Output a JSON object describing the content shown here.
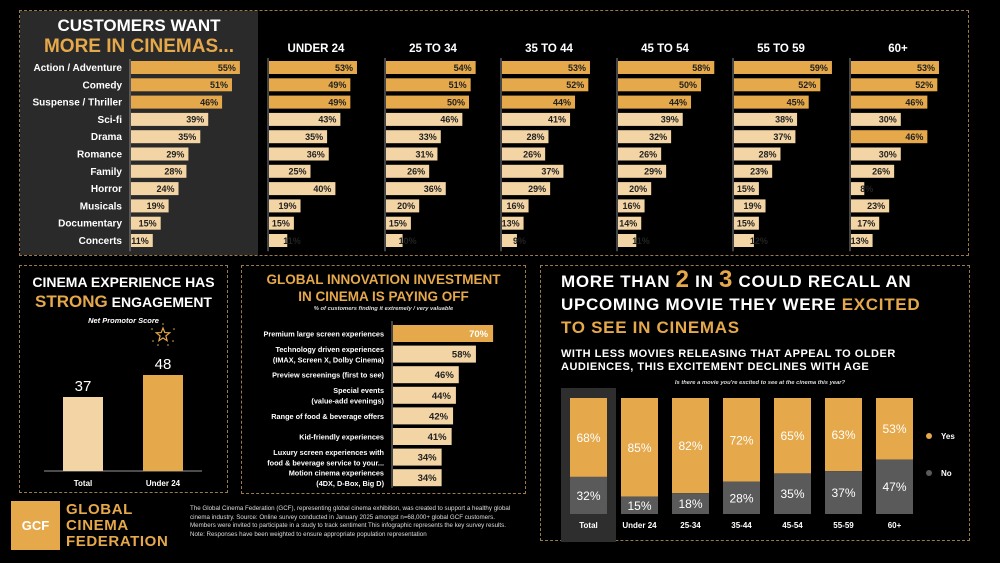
{
  "colors": {
    "gold": "#e5a84a",
    "light": "#f3d4a4",
    "gray": "#5a5a5a",
    "panel_bg": "#2a2a2a",
    "border": "#9a7a4a"
  },
  "genres": {
    "title_line1": "CUSTOMERS WANT",
    "title_line2": "MORE IN CINEMAS...",
    "categories": [
      "Action / Adventure",
      "Comedy",
      "Suspense / Thriller",
      "Sci-fi",
      "Drama",
      "Romance",
      "Family",
      "Horror",
      "Musicals",
      "Documentary",
      "Concerts"
    ]
  },
  "chart_data": [
    {
      "type": "bar",
      "title": "CUSTOMERS WANT MORE IN CINEMAS... (Total)",
      "orientation": "horizontal",
      "categories": [
        "Action / Adventure",
        "Comedy",
        "Suspense / Thriller",
        "Sci-fi",
        "Drama",
        "Romance",
        "Family",
        "Horror",
        "Musicals",
        "Documentary",
        "Concerts"
      ],
      "values": [
        55,
        51,
        46,
        39,
        35,
        29,
        28,
        24,
        19,
        15,
        11
      ],
      "highlight_top": 3,
      "unit": "%"
    },
    {
      "type": "bar",
      "title": "Genre preference by age group",
      "orientation": "horizontal",
      "categories": [
        "Action / Adventure",
        "Comedy",
        "Suspense / Thriller",
        "Sci-fi",
        "Drama",
        "Romance",
        "Family",
        "Horror",
        "Musicals",
        "Documentary",
        "Concerts"
      ],
      "series": [
        {
          "name": "UNDER 24",
          "values": [
            53,
            49,
            49,
            43,
            35,
            36,
            25,
            40,
            19,
            15,
            11
          ],
          "highlight": [
            0,
            1,
            2
          ]
        },
        {
          "name": "25 TO 34",
          "values": [
            54,
            51,
            50,
            46,
            33,
            31,
            26,
            36,
            20,
            15,
            10
          ],
          "highlight": [
            0,
            1,
            2
          ]
        },
        {
          "name": "35 TO 44",
          "values": [
            53,
            52,
            44,
            41,
            28,
            26,
            37,
            29,
            16,
            13,
            9
          ],
          "highlight": [
            0,
            1,
            2
          ]
        },
        {
          "name": "45 TO 54",
          "values": [
            58,
            50,
            44,
            39,
            32,
            26,
            29,
            20,
            16,
            14,
            11
          ],
          "highlight": [
            0,
            1,
            2
          ]
        },
        {
          "name": "55 TO 59",
          "values": [
            59,
            52,
            45,
            38,
            37,
            28,
            23,
            15,
            19,
            15,
            12
          ],
          "highlight": [
            0,
            1,
            2
          ]
        },
        {
          "name": "60+",
          "values": [
            53,
            52,
            46,
            30,
            46,
            30,
            26,
            8,
            23,
            17,
            13
          ],
          "highlight": [
            0,
            1,
            2,
            4
          ]
        }
      ],
      "unit": "%"
    },
    {
      "type": "bar",
      "title": "CINEMA EXPERIENCE HAS STRONG ENGAGEMENT",
      "subtitle": "Net Promotor Score",
      "categories": [
        "Total",
        "Under 24"
      ],
      "values": [
        37,
        48
      ],
      "ylim": [
        0,
        60
      ]
    },
    {
      "type": "bar",
      "title": "GLOBAL INNOVATION INVESTMENT IN CINEMA IS PAYING OFF",
      "subtitle": "% of customers finding it extremely / very valuable",
      "orientation": "horizontal",
      "categories": [
        [
          "Premium large screen experiences"
        ],
        [
          "Technology driven experiences",
          "(IMAX, Screen X, Dolby Cinema)"
        ],
        [
          "Preview screenings (first to see)"
        ],
        [
          "Special events",
          "(value-add evenings)"
        ],
        [
          "Range of food & beverage offers"
        ],
        [
          "Kid-friendly experiences"
        ],
        [
          "Luxury screen experiences with",
          "food & beverage service to your..."
        ],
        [
          "Motion cinema experiences",
          "(4DX, D-Box, Big D)"
        ]
      ],
      "values": [
        70,
        58,
        46,
        44,
        42,
        41,
        34,
        34
      ],
      "unit": "%"
    },
    {
      "type": "bar",
      "stacked": true,
      "title": "Is there a movie you're excited to see at the cinema this year?",
      "categories": [
        "Total",
        "Under 24",
        "25-34",
        "35-44",
        "45-54",
        "55-59",
        "60+"
      ],
      "series": [
        {
          "name": "Yes",
          "values": [
            68,
            85,
            82,
            72,
            65,
            63,
            53
          ]
        },
        {
          "name": "No",
          "values": [
            32,
            15,
            18,
            28,
            35,
            37,
            47
          ]
        }
      ],
      "legend": "right",
      "unit": "%"
    }
  ],
  "nps": {
    "title_line1": "CINEMA EXPERIENCE HAS",
    "title_strong": "STRONG",
    "title_rest": " ENGAGEMENT",
    "subtitle": "Net Promotor Score",
    "star_icon": "star-icon"
  },
  "innovation": {
    "title_line1": "GLOBAL INNOVATION INVESTMENT",
    "title_line2": "IN CINEMA IS PAYING OFF",
    "subtitle": "% of customers finding it extremely / very valuable"
  },
  "excitement": {
    "headline": [
      [
        {
          "t": "MORE THAN ",
          "g": false
        },
        {
          "t": "2",
          "g": true,
          "big": true
        },
        {
          "t": " IN ",
          "g": false
        },
        {
          "t": "3",
          "g": true,
          "big": true
        },
        {
          "t": " COULD RECALL AN",
          "g": false
        }
      ],
      [
        {
          "t": "UPCOMING MOVIE THEY WERE ",
          "g": false
        },
        {
          "t": "EXCITED",
          "g": true
        }
      ],
      [
        {
          "t": "TO SEE IN CINEMAS",
          "g": true
        }
      ]
    ],
    "sub_line1": "WITH LESS MOVIES RELEASING THAT APPEAL TO OLDER",
    "sub_line2": "AUDIENCES, THIS EXCITEMENT DECLINES WITH AGE",
    "question": "Is there a movie you're excited to see at the cinema this year?",
    "legend_yes": "Yes",
    "legend_no": "No"
  },
  "footer": {
    "logo_abbr": "GCF",
    "logo_line1": "GLOBAL",
    "logo_line2": "CINEMA",
    "logo_line3": "FEDERATION",
    "disclaimer": "The Global Cinema Federation (GCF), representing global cinema exhibition, was created to support a healthy global cinema industry.  Source: Online survey conducted in January 2025 amongst n=68,000+ global GCF customers. Members were invited to participate in a study to track sentiment This infographic represents the key survey results.  Note: Responses have been weighted to ensure appropriate population representation"
  }
}
